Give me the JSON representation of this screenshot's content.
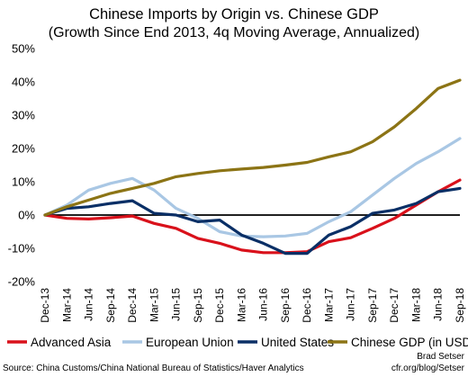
{
  "chart_data": {
    "type": "line",
    "title": "Chinese Imports by Origin vs. Chinese GDP",
    "subtitle": "(Growth Since End 2013, 4q Moving Average, Annualized)",
    "xlabel": "",
    "ylabel": "",
    "categories": [
      "Dec-13",
      "Mar-14",
      "Jun-14",
      "Sep-14",
      "Dec-14",
      "Mar-15",
      "Jun-15",
      "Sep-15",
      "Dec-15",
      "Mar-16",
      "Jun-16",
      "Sep-16",
      "Dec-16",
      "Mar-17",
      "Jun-17",
      "Sep-17",
      "Dec-17",
      "Mar-18",
      "Jun-18",
      "Sep-18"
    ],
    "y_ticks": [
      "-20%",
      "-10%",
      "0%",
      "10%",
      "20%",
      "30%",
      "40%",
      "50%"
    ],
    "ylim": [
      -20,
      50
    ],
    "y_unit": "%",
    "grid": false,
    "zero_line": true,
    "legend_position": "bottom",
    "series": [
      {
        "name": "Advanced Asia",
        "color": "#d9111b",
        "values": [
          0,
          -1,
          -1.2,
          -0.8,
          -0.3,
          -2.5,
          -4,
          -7,
          -8.5,
          -10.5,
          -11.3,
          -11.3,
          -11,
          -8,
          -6.8,
          -4,
          -1,
          3,
          7,
          10.5
        ]
      },
      {
        "name": "European Union",
        "color": "#a9c7e4",
        "values": [
          0,
          3,
          7.5,
          9.5,
          11,
          7.5,
          2,
          -1,
          -5,
          -6.3,
          -6.5,
          -6.3,
          -5.5,
          -2,
          1,
          6,
          11,
          15.5,
          19,
          23
        ]
      },
      {
        "name": "United States",
        "color": "#0a2f66",
        "values": [
          0,
          2,
          2.5,
          3.5,
          4.3,
          0.5,
          0,
          -2,
          -1.5,
          -6,
          -8.5,
          -11.5,
          -11.5,
          -6,
          -3.5,
          0.5,
          1.5,
          3.5,
          7,
          8
        ]
      },
      {
        "name": "Chinese GDP (in USD)",
        "color": "#8c7415",
        "values": [
          0,
          2.5,
          4.5,
          6.5,
          8,
          9.5,
          11.5,
          12.5,
          13.3,
          13.8,
          14.3,
          15,
          15.8,
          17.5,
          19,
          22,
          26.5,
          32,
          38,
          40.5
        ]
      }
    ]
  },
  "credit": {
    "source": "Source: China Customs/China National Bureau of Statistics/Haver Analytics",
    "author": "Brad Setser",
    "url": "cfr.org/blog/Setser"
  }
}
